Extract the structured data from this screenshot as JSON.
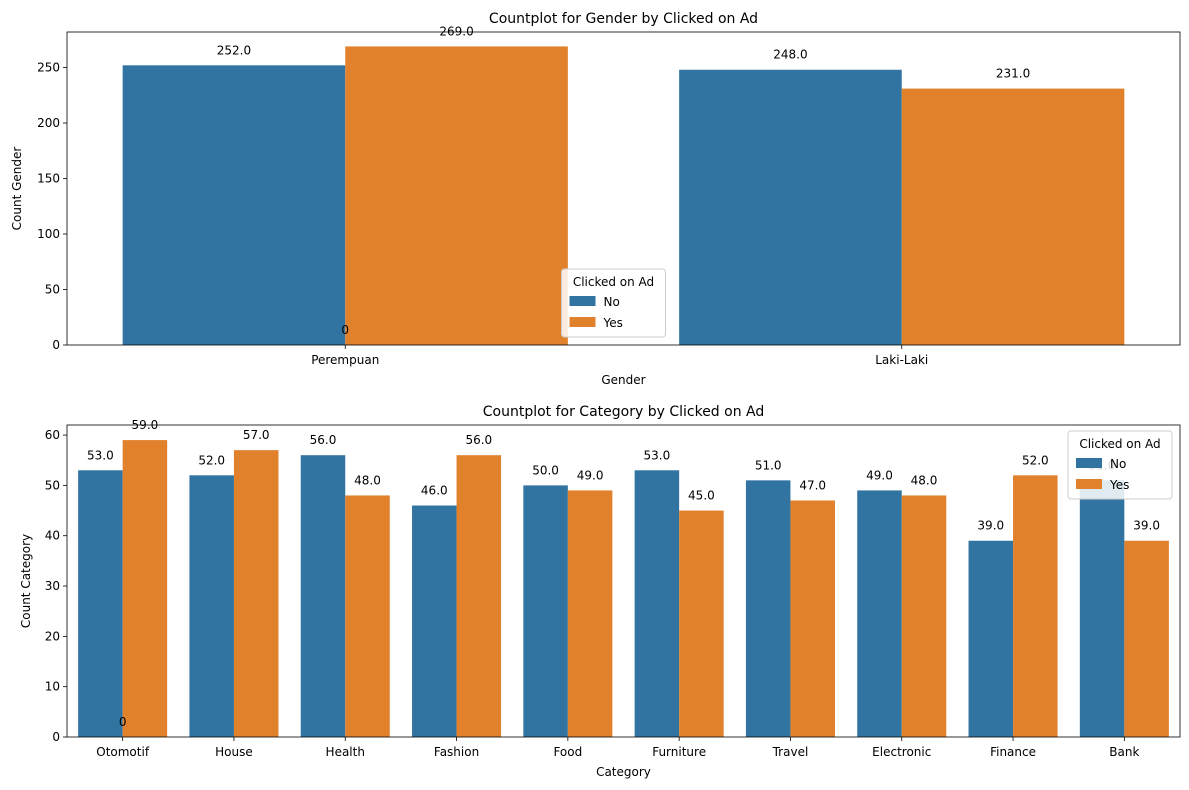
{
  "colors": {
    "no": "#3274a1",
    "yes": "#e1812c"
  },
  "chart_data": [
    {
      "type": "bar",
      "title": "Countplot for Gender by Clicked on Ad",
      "xlabel": "Gender",
      "ylabel": "Count Gender",
      "categories": [
        "Perempuan",
        "Laki-Laki"
      ],
      "series": [
        {
          "name": "No",
          "values": [
            252,
            248
          ],
          "labels": [
            "252.0",
            "248.0"
          ]
        },
        {
          "name": "Yes",
          "values": [
            269,
            231
          ],
          "labels": [
            "269.0",
            "231.0"
          ]
        }
      ],
      "ylim": [
        0,
        282
      ],
      "yticks": [
        0,
        50,
        100,
        150,
        200,
        250
      ],
      "legend": {
        "title": "Clicked on Ad",
        "placement": "lower-center"
      },
      "annotation": {
        "text": "0",
        "x_category": 0,
        "y": 0
      },
      "grid": false
    },
    {
      "type": "bar",
      "title": "Countplot for Category by Clicked on Ad",
      "xlabel": "Category",
      "ylabel": "Count Category",
      "categories": [
        "Otomotif",
        "House",
        "Health",
        "Fashion",
        "Food",
        "Furniture",
        "Travel",
        "Electronic",
        "Finance",
        "Bank"
      ],
      "series": [
        {
          "name": "No",
          "values": [
            53,
            52,
            56,
            46,
            50,
            53,
            51,
            49,
            39,
            51
          ],
          "labels": [
            "53.0",
            "52.0",
            "56.0",
            "46.0",
            "50.0",
            "53.0",
            "51.0",
            "49.0",
            "39.0",
            "51.0"
          ]
        },
        {
          "name": "Yes",
          "values": [
            59,
            57,
            48,
            56,
            49,
            45,
            47,
            48,
            52,
            39
          ],
          "labels": [
            "59.0",
            "57.0",
            "48.0",
            "56.0",
            "49.0",
            "45.0",
            "47.0",
            "48.0",
            "52.0",
            "39.0"
          ]
        }
      ],
      "ylim": [
        0,
        62
      ],
      "yticks": [
        0,
        10,
        20,
        30,
        40,
        50,
        60
      ],
      "legend": {
        "title": "Clicked on Ad",
        "placement": "top-right"
      },
      "annotation": {
        "text": "0",
        "x_category": 0,
        "y": 0
      },
      "grid": false
    }
  ]
}
